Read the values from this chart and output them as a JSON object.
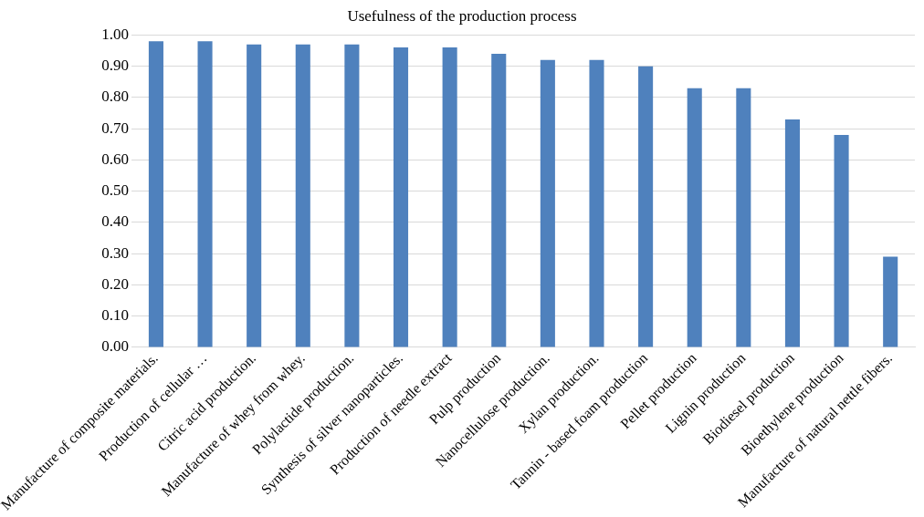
{
  "chart_data": {
    "type": "bar",
    "title": "Usefulness of the production process",
    "categories": [
      "Manufacture of composite materials.",
      "Production of cellular …",
      "Citric acid production.",
      "Manufacture of whey from whey.",
      "Polylactide production.",
      "Synthesis of silver nanoparticles.",
      "Production of needle extract",
      "Pulp production",
      "Nanocellulose production.",
      "Xylan production.",
      "Tannin - based foam production",
      "Pellet production",
      "Lignin production",
      "Biodiesel production",
      "Bioethylene production",
      "Manufacture of natural nettle fibers."
    ],
    "values": [
      0.98,
      0.98,
      0.97,
      0.97,
      0.97,
      0.96,
      0.96,
      0.94,
      0.92,
      0.92,
      0.9,
      0.83,
      0.83,
      0.73,
      0.68,
      0.29
    ],
    "color": "#4f81bd",
    "ylim": [
      0,
      1
    ],
    "yticks": [
      {
        "value": 0,
        "label": "0.00"
      },
      {
        "value": 0.1,
        "label": "0.10"
      },
      {
        "value": 0.2,
        "label": "0.20"
      },
      {
        "value": 0.3,
        "label": "0.30"
      },
      {
        "value": 0.4,
        "label": "0.40"
      },
      {
        "value": 0.5,
        "label": "0.50"
      },
      {
        "value": 0.6,
        "label": "0.60"
      },
      {
        "value": 0.7,
        "label": "0.70"
      },
      {
        "value": 0.8,
        "label": "0.80"
      },
      {
        "value": 0.9,
        "label": "0.90"
      },
      {
        "value": 1,
        "label": "1.00"
      }
    ],
    "grid": "y"
  }
}
